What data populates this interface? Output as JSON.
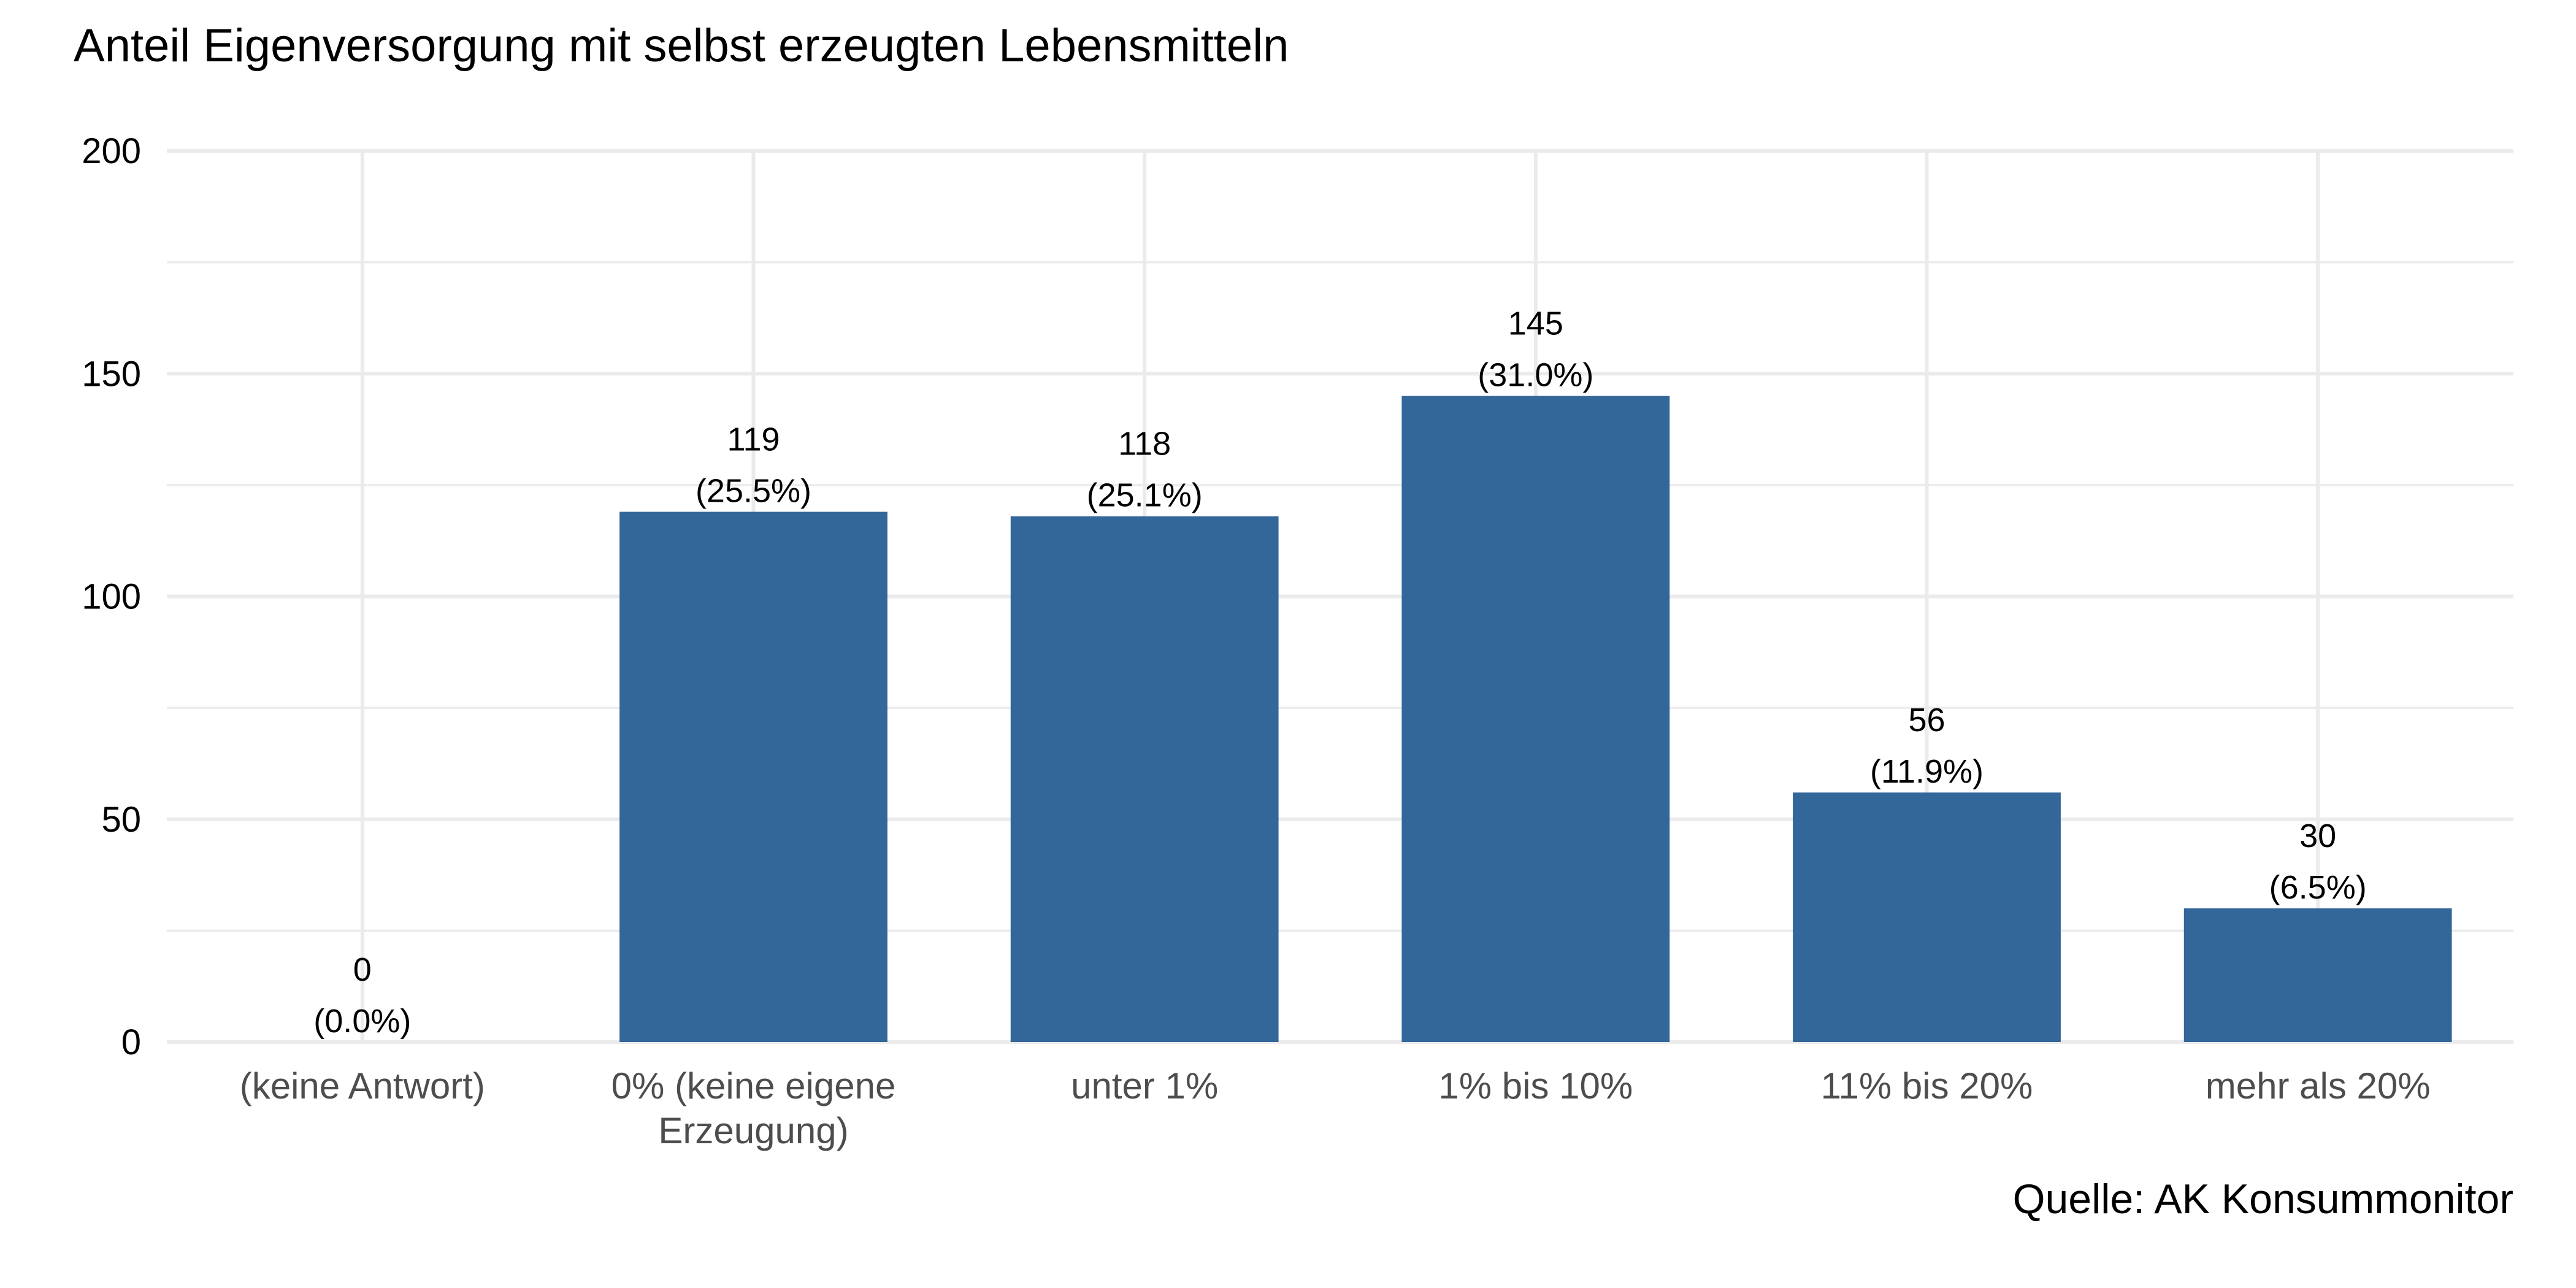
{
  "chart_data": {
    "type": "bar",
    "title": "Anteil Eigenversorgung mit selbst erzeugten Lebensmitteln",
    "caption": "Quelle: AK Konsummonitor",
    "xlabel": "",
    "ylabel": "",
    "ylim": [
      0,
      200
    ],
    "yticks": [
      0,
      50,
      100,
      150,
      200
    ],
    "grid": true,
    "bar_color": "#336699",
    "categories": [
      [
        "(keine Antwort)"
      ],
      [
        "0% (keine eigene",
        "Erzeugung)"
      ],
      [
        "unter 1%"
      ],
      [
        "1% bis 10%"
      ],
      [
        "11% bis 20%"
      ],
      [
        "mehr als 20%"
      ]
    ],
    "values": [
      0,
      119,
      118,
      145,
      56,
      30
    ],
    "count_labels": [
      "0",
      "119",
      "118",
      "145",
      "56",
      "30"
    ],
    "percent_labels": [
      "(0.0%)",
      "(25.5%)",
      "(25.1%)",
      "(31.0%)",
      "(11.9%)",
      "(6.5%)"
    ]
  }
}
